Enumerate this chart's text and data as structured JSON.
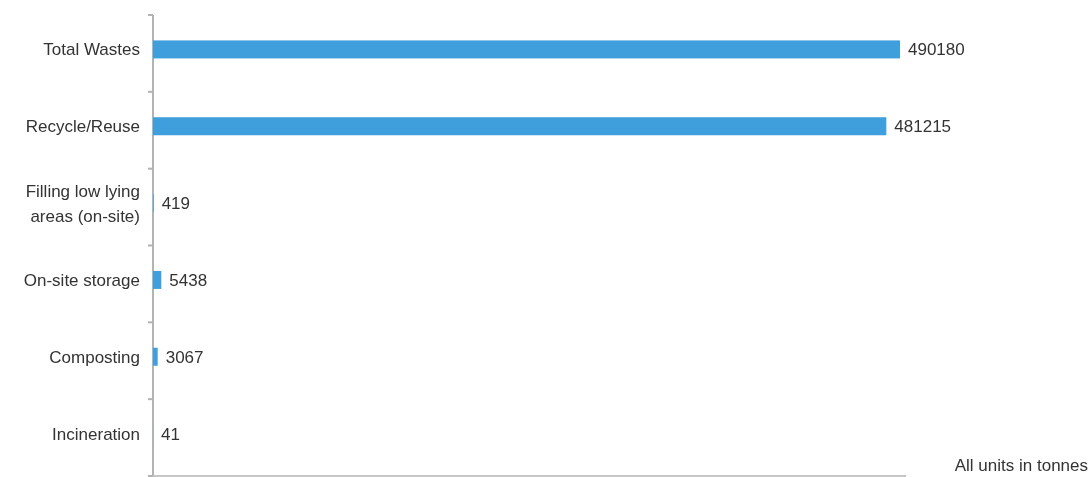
{
  "chart_data": {
    "type": "bar",
    "orientation": "horizontal",
    "categories": [
      "Total Wastes",
      "Recycle/Reuse",
      "Filling low lying areas (on-site)",
      "On-site storage",
      "Composting",
      "Incineration"
    ],
    "values": [
      490180,
      481215,
      419,
      5438,
      3067,
      41
    ],
    "color": "#3f9edc",
    "data_labels": true,
    "annotations": [
      "All units in tonnes"
    ]
  }
}
